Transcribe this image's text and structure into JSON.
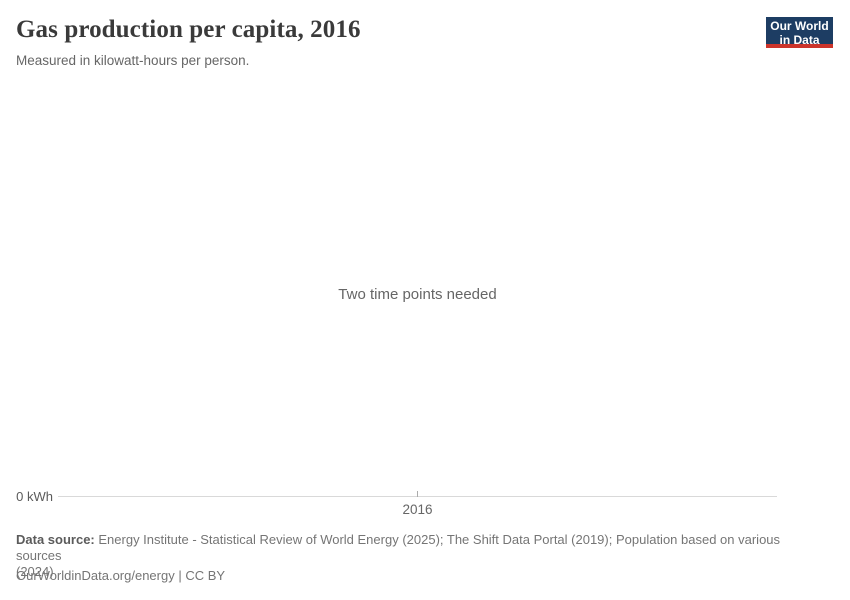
{
  "header": {
    "title": "Gas production per capita, 2016",
    "subtitle": "Measured in kilowatt-hours per person."
  },
  "logo": {
    "line1": "Our World",
    "line2": "in Data"
  },
  "chart": {
    "empty_message": "Two time points needed",
    "y_axis_zero_label": "0 kWh",
    "x_tick_label": "2016"
  },
  "chart_data": {
    "type": "bar",
    "title": "Gas production per capita, 2016",
    "subtitle": "Measured in kilowatt-hours per person.",
    "categories": [],
    "series": [],
    "x_tick_labels": [
      "2016"
    ],
    "y_tick_labels": [
      "0 kWh"
    ],
    "ylabel": "kilowatt-hours per person",
    "grid": false,
    "legend": false,
    "empty_state_message": "Two time points needed"
  },
  "footer": {
    "data_source_label": "Data source:",
    "data_source_line1": "Energy Institute - Statistical Review of World Energy (2025); The Shift Data Portal (2019); Population based on various sources",
    "data_source_line2": "(2024)",
    "license_line": "OurWorldinData.org/energy | CC BY"
  },
  "colors": {
    "logo_navy": "#1d3d63",
    "logo_red": "#cc342b",
    "title_text": "#3a3a3a",
    "muted_text": "#666666",
    "footer_text": "#757575",
    "axis_line": "#d9d9d9"
  }
}
